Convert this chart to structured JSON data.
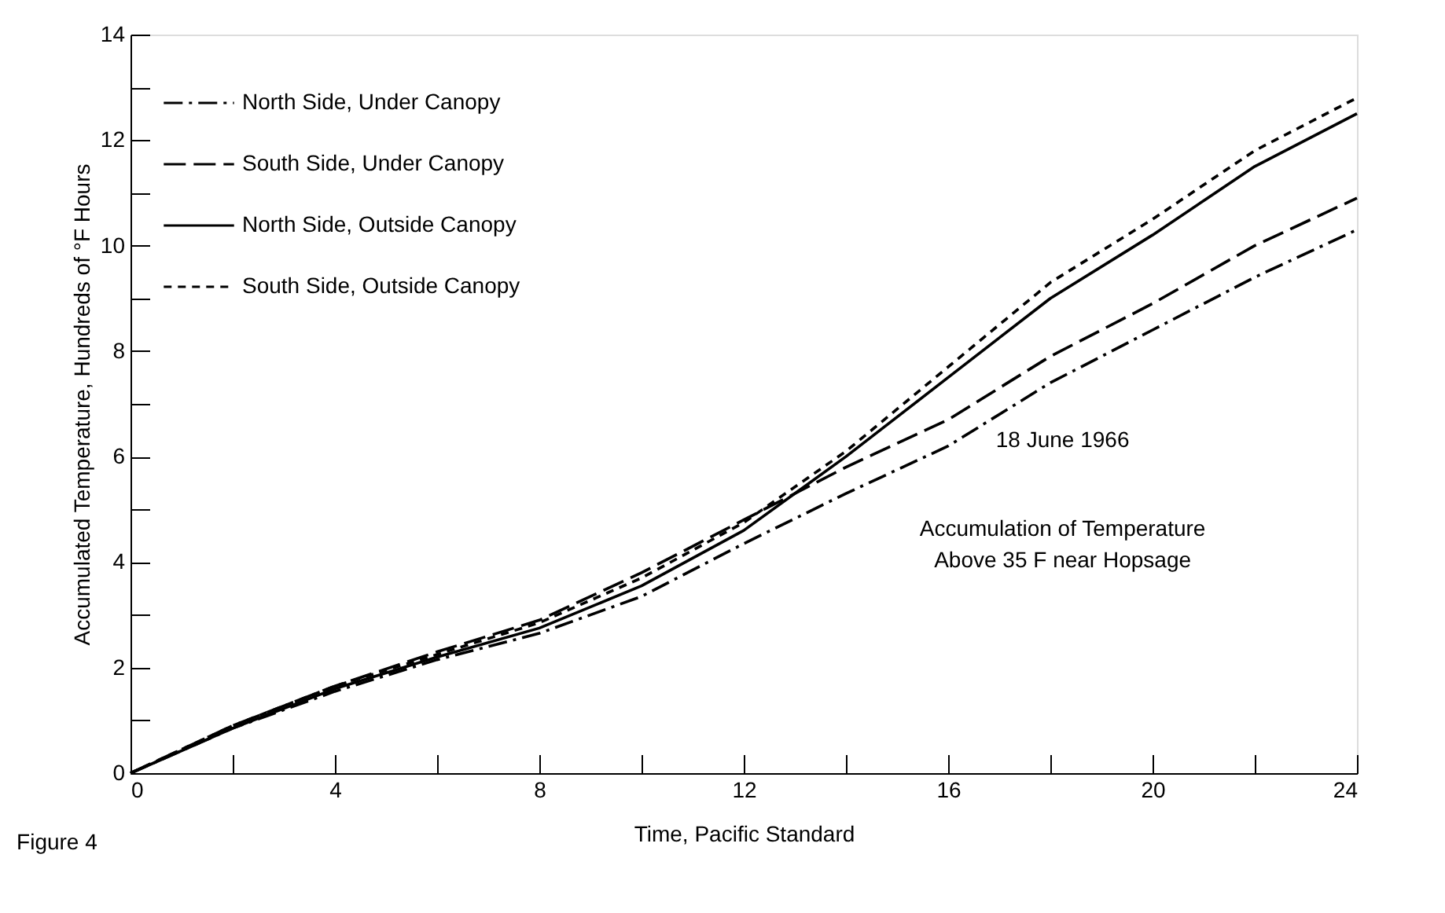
{
  "chart_data": {
    "type": "line",
    "xlabel": "Time, Pacific Standard",
    "ylabel": "Accumulated Temperature, Hundreds of °F Hours",
    "x": [
      0,
      2,
      4,
      6,
      8,
      10,
      12,
      14,
      16,
      18,
      20,
      22,
      24
    ],
    "series": [
      {
        "name": "North Side, Under Canopy",
        "color": "#000000",
        "line_style": "dashdot",
        "values": [
          0,
          0.85,
          1.55,
          2.15,
          2.65,
          3.35,
          4.35,
          5.3,
          6.2,
          7.4,
          8.4,
          9.4,
          10.3
        ]
      },
      {
        "name": "South Side, Under Canopy",
        "color": "#000000",
        "line_style": "dashed",
        "values": [
          0,
          0.9,
          1.65,
          2.3,
          2.9,
          3.8,
          4.8,
          5.8,
          6.7,
          7.9,
          8.9,
          10.0,
          10.9
        ]
      },
      {
        "name": "North Side, Outside Canopy",
        "color": "#000000",
        "line_style": "solid",
        "values": [
          0,
          0.85,
          1.6,
          2.2,
          2.75,
          3.55,
          4.6,
          6.0,
          7.5,
          9.0,
          10.2,
          11.5,
          12.5
        ]
      },
      {
        "name": "South Side, Outside Canopy",
        "color": "#000000",
        "line_style": "dotted",
        "values": [
          0,
          0.9,
          1.65,
          2.25,
          2.85,
          3.7,
          4.75,
          6.1,
          7.7,
          9.3,
          10.5,
          11.8,
          12.8
        ]
      }
    ],
    "xlim": [
      0,
      24
    ],
    "ylim": [
      0,
      14
    ],
    "xticks": [
      0,
      {
        "value": 2,
        "label": null
      },
      4,
      {
        "value": 6,
        "label": null
      },
      8,
      {
        "value": 10,
        "label": null
      },
      12,
      {
        "value": 14,
        "label": null
      },
      16,
      {
        "value": 18,
        "label": null
      },
      20,
      {
        "value": 22,
        "label": null
      },
      24
    ],
    "yticks": [
      0,
      {
        "value": 1,
        "label": null
      },
      2,
      {
        "value": 3,
        "label": null
      },
      4,
      {
        "value": 5,
        "label": null
      },
      6,
      {
        "value": 7,
        "label": null
      },
      8,
      {
        "value": 9,
        "label": null
      },
      10,
      {
        "value": 11,
        "label": null
      },
      12,
      {
        "value": 13,
        "label": null
      },
      14
    ],
    "grid": false,
    "legend": "top left",
    "marker": "none",
    "annotations": [
      "18 June 1966",
      "Accumulation of Temperature\nAbove 35 F near Hopsage",
      "Figure 4"
    ]
  }
}
